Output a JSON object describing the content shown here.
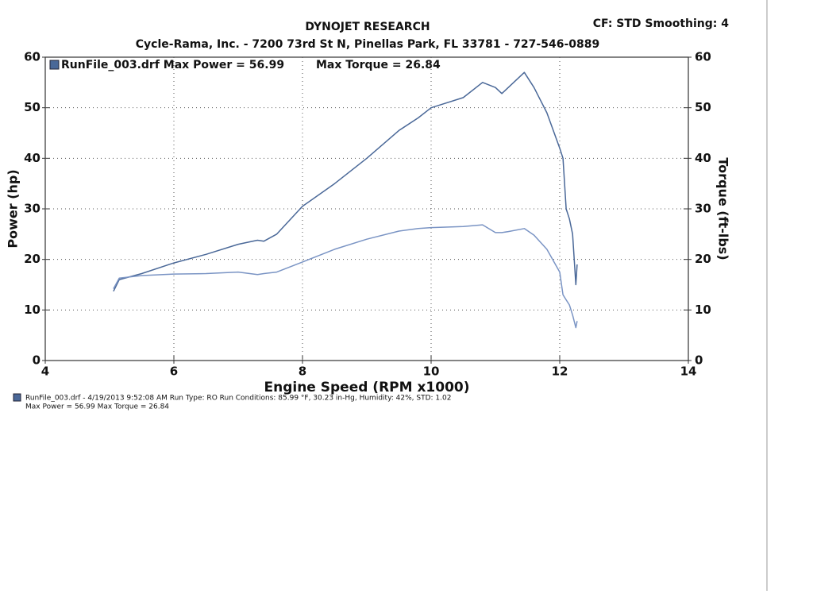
{
  "chart_data": {
    "type": "line",
    "title": "DYNOJET RESEARCH",
    "settings_text": "CF: STD  Smoothing: 4",
    "subtitle": "Cycle-Rama,  Inc. - 7200 73rd St N, Pinellas Park, FL  33781 - 727-546-0889",
    "legend_text": "RunFile_003.drf Max Power = 56.99",
    "legend_text_2": "Max Torque = 26.84",
    "xlabel": "Engine Speed (RPM x1000)",
    "ylabel": "Power (hp)",
    "y2label": "Torque (ft-lbs)",
    "footnote": "RunFile_003.drf - 4/19/2013 9:52:08 AM  Run Type: RO  Run Conditions: 85.99 °F, 30.23 in-Hg,  Humidity:  42%, STD: 1.02",
    "footnote_2": "Max Power = 56.99  Max Torque = 26.84",
    "x": [
      5.06,
      5.15,
      5.5,
      6.0,
      6.5,
      7.0,
      7.3,
      7.4,
      7.6,
      8.0,
      8.5,
      9.0,
      9.5,
      9.8,
      10.0,
      10.5,
      10.8,
      11.0,
      11.1,
      11.2,
      11.45,
      11.6,
      11.8,
      12.0,
      12.05,
      12.1,
      12.15,
      12.2,
      12.25,
      12.27
    ],
    "series": [
      {
        "color": "#4a6898",
        "values": [
          13.7,
          16,
          17.2,
          19.3,
          21,
          23,
          23.8,
          23.6,
          25,
          30.5,
          35,
          40,
          45.5,
          48,
          50,
          52,
          55,
          54,
          52.8,
          54,
          56.99,
          54,
          49,
          42,
          40,
          30,
          28,
          25,
          15,
          19
        ]
      },
      {
        "color": "#7a94c4",
        "axis": "y2",
        "values": [
          14.2,
          16.3,
          16.8,
          17.1,
          17.2,
          17.5,
          17,
          17.2,
          17.5,
          19.5,
          22,
          24,
          25.6,
          26.1,
          26.3,
          26.5,
          26.84,
          25.3,
          25.3,
          25.5,
          26.1,
          24.8,
          22,
          17.5,
          13,
          12,
          11,
          9,
          6.5,
          7.8
        ]
      }
    ],
    "xlim": [
      4,
      14
    ],
    "xticks": [
      4,
      6,
      8,
      10,
      12,
      14
    ],
    "ylim": [
      0,
      60
    ],
    "yticks": [
      0,
      10,
      20,
      30,
      40,
      50,
      60
    ],
    "y2lim": [
      0,
      60
    ],
    "y2ticks": [
      0,
      10,
      20,
      30,
      40,
      50,
      60
    ],
    "grid": true
  }
}
